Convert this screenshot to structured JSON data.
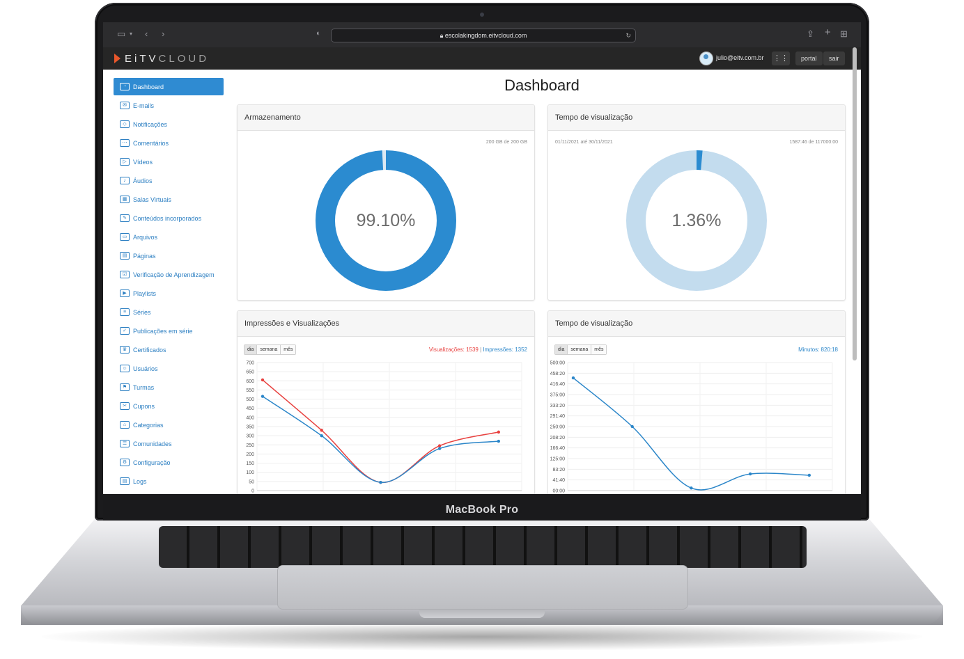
{
  "device": {
    "brand_label": "MacBook Pro"
  },
  "browser": {
    "url": "escolakingdom.eitvcloud.com"
  },
  "app": {
    "logo_prefix": "EiTV",
    "logo_suffix": "CLOUD",
    "user_email": "julio@eitv.com.br",
    "buttons": {
      "portal": "portal",
      "logout": "sair"
    }
  },
  "sidebar": {
    "items": [
      {
        "label": "Dashboard",
        "active": true
      },
      {
        "label": "E-mails"
      },
      {
        "label": "Notificações"
      },
      {
        "label": "Comentários"
      },
      {
        "label": "Vídeos"
      },
      {
        "label": "Áudios"
      },
      {
        "label": "Salas Virtuais"
      },
      {
        "label": "Conteúdos incorporados"
      },
      {
        "label": "Arquivos"
      },
      {
        "label": "Páginas"
      },
      {
        "label": "Verificação de Aprendizagem"
      },
      {
        "label": "Playlists"
      },
      {
        "label": "Séries"
      },
      {
        "label": "Publicações em série"
      },
      {
        "label": "Certificados"
      },
      {
        "label": "Usuários"
      },
      {
        "label": "Turmas"
      },
      {
        "label": "Cupons"
      },
      {
        "label": "Categorias"
      },
      {
        "label": "Comunidades"
      },
      {
        "label": "Configuração"
      },
      {
        "label": "Logs"
      }
    ]
  },
  "main": {
    "title": "Dashboard",
    "storage": {
      "title": "Armazenamento",
      "usage": "200 GB de 200 GB",
      "percent_label": "99.10%",
      "fraction": 0.991
    },
    "watch_time": {
      "title": "Tempo de visualização",
      "range": "01/11/2021 até 30/11/2021",
      "usage": "1587:46 de 117000:00",
      "percent_label": "1.36%",
      "fraction": 0.0136
    },
    "impressions": {
      "title": "Impressões e Visualizações",
      "segments": [
        "dia",
        "semana",
        "mês"
      ],
      "legend_views": "Visualizações: 1539",
      "legend_sep": " | ",
      "legend_impressions": "Impressões: 1352"
    },
    "watch_chart": {
      "title": "Tempo de visualização",
      "segments": [
        "dia",
        "semana",
        "mês"
      ],
      "legend": "Minutos: 820:18"
    }
  },
  "chart_data": [
    {
      "type": "line",
      "x": [
        1,
        2,
        3,
        4,
        5
      ],
      "series": [
        {
          "name": "Visualizações",
          "color": "#e8413f",
          "values": [
            605,
            330,
            45,
            245,
            320
          ]
        },
        {
          "name": "Impressões",
          "color": "#2b86c9",
          "values": [
            515,
            300,
            45,
            230,
            270
          ]
        }
      ],
      "yticks": [
        "700",
        "650",
        "600",
        "550",
        "500",
        "450",
        "400",
        "350",
        "300",
        "250",
        "200",
        "150",
        "100",
        "50",
        "0"
      ],
      "ylim": [
        0,
        700
      ],
      "grid": true
    },
    {
      "type": "line",
      "x": [
        1,
        2,
        3,
        4,
        5
      ],
      "series": [
        {
          "name": "Minutos",
          "color": "#2b86c9",
          "values": [
            440,
            250,
            10,
            65,
            60
          ]
        }
      ],
      "yticks": [
        "500:00",
        "458:20",
        "416:40",
        "375:00",
        "333:20",
        "291:40",
        "250:00",
        "208:20",
        "166:40",
        "125:00",
        "83:20",
        "41:40",
        "00:00"
      ],
      "ylim": [
        0,
        500
      ],
      "grid": true
    }
  ]
}
